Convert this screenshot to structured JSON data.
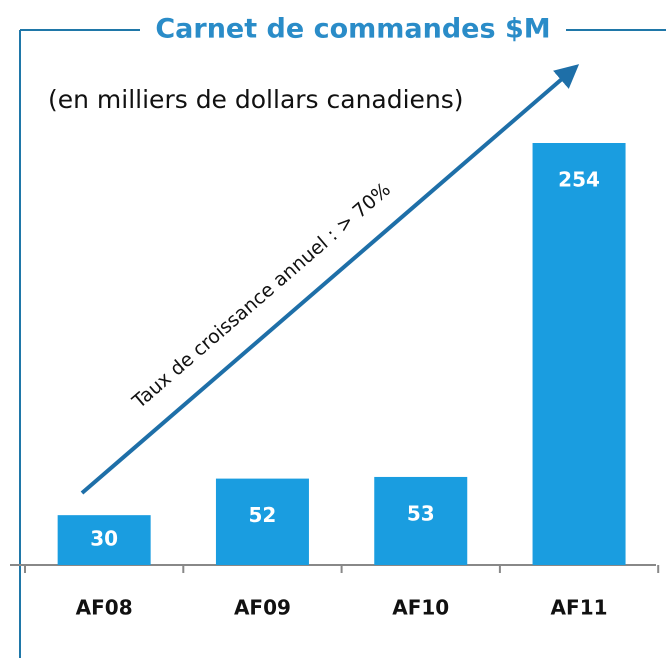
{
  "chart_data": {
    "type": "bar",
    "title": "Carnet de commandes $M",
    "subtitle": "(en milliers de dollars canadiens)",
    "annotation": "Taux de croissance annuel : > 70%",
    "categories": [
      "AF08",
      "AF09",
      "AF10",
      "AF11"
    ],
    "values": [
      30,
      52,
      53,
      254
    ],
    "color": "#1a9de0"
  }
}
